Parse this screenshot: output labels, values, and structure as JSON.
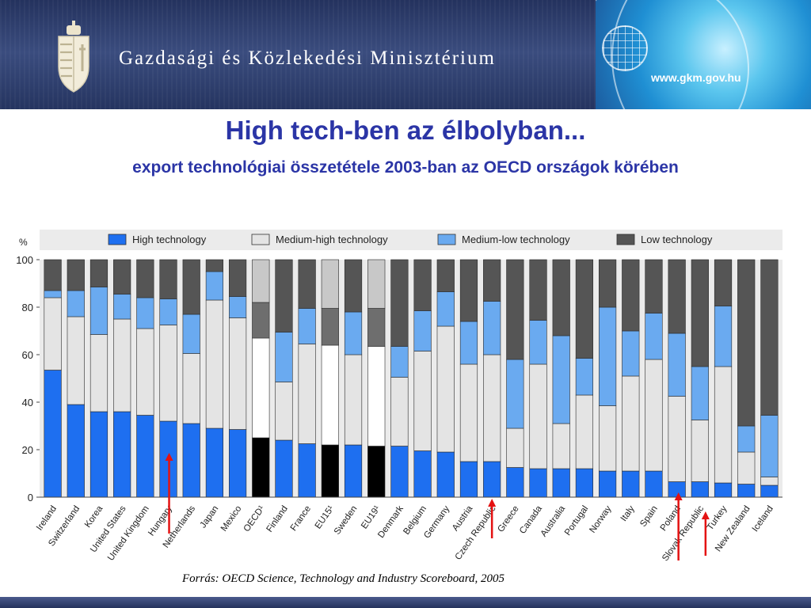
{
  "header": {
    "ministry_name": "Gazdasági és Közlekedési Minisztérium",
    "website": "www.gkm.gov.hu",
    "logo_icon": "hungarian-coat-of-arms-icon"
  },
  "slide": {
    "title": "High tech-ben az élbolyban...",
    "subtitle": "export technológiai összetétele 2003-ban az OECD országok körében",
    "source": "Forrás: OECD Science, Technology and Industry Scoreboard, 2005"
  },
  "chart_data": {
    "type": "bar",
    "stacked": true,
    "ylabel": "%",
    "ylim": [
      0,
      100
    ],
    "yticks": [
      0,
      20,
      40,
      60,
      80,
      100
    ],
    "legend_position": "top",
    "categories": [
      "Ireland",
      "Switzerland",
      "Korea",
      "United States",
      "United Kingdom",
      "Hungary",
      "Netherlands",
      "Japan",
      "Mexico",
      "OECD¹",
      "Finland",
      "France",
      "EU15¹",
      "Sweden",
      "EU19¹",
      "Denmark",
      "Belgium",
      "Germany",
      "Austria",
      "Czech Republic",
      "Greece",
      "Canada",
      "Australia",
      "Portugal",
      "Norway",
      "Italy",
      "Spain",
      "Poland",
      "Slovak Republic",
      "Turkey",
      "New Zealand",
      "Iceland"
    ],
    "aggregate_categories": [
      "OECD¹",
      "EU15¹",
      "EU19¹"
    ],
    "highlighted_categories": [
      "Hungary",
      "Czech Republic",
      "Poland",
      "Slovak Republic"
    ],
    "series": [
      {
        "name": "High technology",
        "color": "#1e6ff0",
        "aggregate_color": "#000000",
        "values": [
          53.5,
          39,
          36,
          36,
          34.5,
          32,
          31,
          29,
          28.5,
          25,
          24,
          22.5,
          22,
          22,
          21.5,
          21.5,
          19.5,
          19,
          15,
          15,
          12.5,
          12,
          12,
          12,
          11,
          11,
          11,
          6.5,
          6.5,
          6,
          5.5,
          5
        ]
      },
      {
        "name": "Medium-high technology",
        "color": "#e4e4e4",
        "aggregate_color": "#ffffff",
        "values": [
          30.5,
          37,
          32.5,
          39,
          36.5,
          40.5,
          29.5,
          54,
          47,
          42,
          24.5,
          42,
          42,
          38,
          42,
          29,
          42,
          53,
          41,
          45,
          16.5,
          44,
          19,
          31,
          27.5,
          40,
          47,
          36,
          26,
          49,
          13.5,
          3.5
        ]
      },
      {
        "name": "Medium-low technology",
        "color": "#6aaaf0",
        "aggregate_color": "#6e6e6e",
        "values": [
          3,
          11,
          20,
          10.5,
          13,
          11,
          16.5,
          12,
          9,
          15,
          21,
          15,
          15.5,
          18,
          16,
          13,
          17,
          14.5,
          18,
          22.5,
          29,
          18.5,
          37,
          15.5,
          41.5,
          19,
          19.5,
          26.5,
          22.5,
          25.5,
          11,
          26
        ]
      },
      {
        "name": "Low technology",
        "color": "#555555",
        "aggregate_color": "#c8c8c8",
        "values": [
          13,
          13,
          11.5,
          14.5,
          16,
          16.5,
          23,
          5,
          15.5,
          18,
          30.5,
          20.5,
          20.5,
          22,
          20.5,
          36.5,
          21.5,
          13.5,
          26,
          17.5,
          42,
          25.5,
          32,
          41.5,
          20,
          30,
          22.5,
          31,
          45,
          19.5,
          70,
          65.5
        ]
      }
    ]
  }
}
